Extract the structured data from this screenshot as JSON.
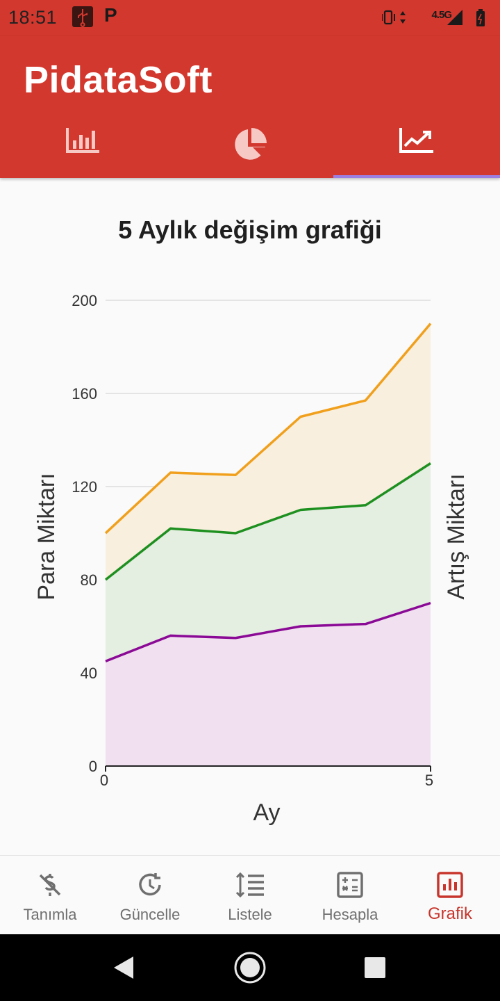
{
  "status_bar": {
    "time": "18:51",
    "network": "4.5G",
    "icons": [
      "usb-icon",
      "p-notification-icon",
      "vibrate-icon",
      "data-arrows-icon",
      "signal-icon",
      "battery-icon"
    ]
  },
  "app_bar": {
    "title": "PidataSoft",
    "tabs": [
      {
        "icon": "bar-chart-icon",
        "active": false
      },
      {
        "icon": "pie-chart-icon",
        "active": false
      },
      {
        "icon": "line-chart-icon",
        "active": true
      }
    ],
    "background_color": "#d2382e",
    "indicator_color": "#9c7ee0"
  },
  "chart_title": "5 Aylık değişim grafiği",
  "chart_data": {
    "type": "area",
    "title": "5 Aylık değişim grafiği",
    "xlabel": "Ay",
    "ylabel": "Para Miktarı",
    "y2label": "Artış Miktarı",
    "x": [
      0,
      1,
      2,
      3,
      4,
      5
    ],
    "xlim": [
      0,
      5
    ],
    "ylim": [
      0,
      200
    ],
    "x_ticks": [
      "0",
      "5"
    ],
    "y_ticks": [
      "0",
      "40",
      "80",
      "120",
      "160",
      "200"
    ],
    "grid": true,
    "series": [
      {
        "color": "#f0a01c",
        "fill": "#f9efdf",
        "values": [
          100,
          126,
          125,
          150,
          157,
          190
        ]
      },
      {
        "color": "#1e9020",
        "fill": "#e4eee1",
        "values": [
          80,
          102,
          100,
          110,
          112,
          130
        ]
      },
      {
        "color": "#8a0a96",
        "fill": "#f1e0ef",
        "values": [
          45,
          56,
          55,
          60,
          61,
          70
        ]
      }
    ]
  },
  "bottom_nav": {
    "items": [
      {
        "label": "Tanımla",
        "icon": "money-off-icon",
        "active": false
      },
      {
        "label": "Güncelle",
        "icon": "update-clock-icon",
        "active": false
      },
      {
        "label": "Listele",
        "icon": "list-icon",
        "active": false
      },
      {
        "label": "Hesapla",
        "icon": "calculator-icon",
        "active": false
      },
      {
        "label": "Grafik",
        "icon": "chart-icon",
        "active": true
      }
    ],
    "active_color": "#c8352c",
    "inactive_color": "#6f6f6f"
  },
  "system_nav": {
    "icons": [
      "back-icon",
      "home-icon",
      "recents-icon"
    ]
  }
}
